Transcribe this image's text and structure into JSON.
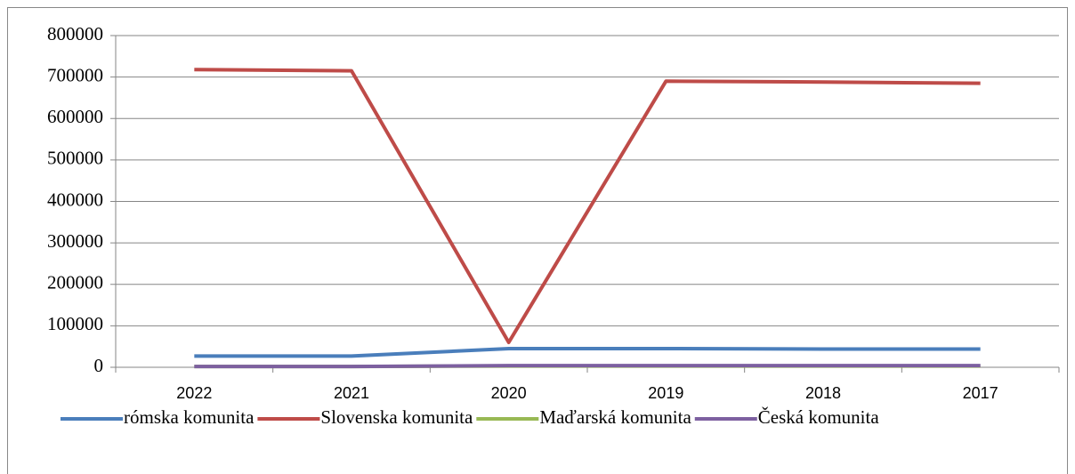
{
  "chart_data": {
    "type": "line",
    "categories": [
      "2022",
      "2021",
      "2020",
      "2019",
      "2018",
      "2017"
    ],
    "series": [
      {
        "name": "rómska komunita",
        "color": "#4a7ebb",
        "values": [
          27000,
          27000,
          45000,
          45000,
          44000,
          44000
        ]
      },
      {
        "name": "Slovenska komunita",
        "color": "#be4b48",
        "values": [
          718000,
          715000,
          60000,
          690000,
          688000,
          685000
        ]
      },
      {
        "name": "Maďarská komunita",
        "color": "#98b954",
        "values": [
          2000,
          2000,
          3000,
          3000,
          3000,
          3000
        ]
      },
      {
        "name": "Česká komunita",
        "color": "#7d60a0",
        "values": [
          2000,
          2000,
          4000,
          4000,
          4000,
          4000
        ]
      }
    ],
    "ylim": [
      0,
      800000
    ],
    "yticks": [
      0,
      100000,
      200000,
      300000,
      400000,
      500000,
      600000,
      700000,
      800000
    ],
    "grid": true,
    "legend": "bottom"
  }
}
